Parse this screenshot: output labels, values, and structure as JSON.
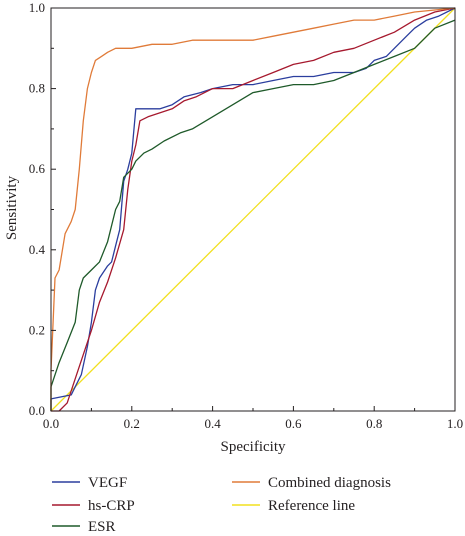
{
  "chart_data": {
    "type": "line",
    "title": "",
    "xlabel": "Specificity",
    "ylabel": "Sensitivity",
    "xlim": [
      0,
      1
    ],
    "ylim": [
      0,
      1
    ],
    "x_ticks": [
      "0.0",
      "0.2",
      "0.4",
      "0.6",
      "0.8",
      "1.0"
    ],
    "y_ticks": [
      "0.0",
      "0.2",
      "0.4",
      "0.6",
      "0.8",
      "1.0"
    ],
    "grid": false,
    "legend": "bottom",
    "series": [
      {
        "name": "VEGF",
        "color": "#2b3e9e",
        "points": [
          [
            0,
            0
          ],
          [
            0,
            0.03
          ],
          [
            0.05,
            0.04
          ],
          [
            0.06,
            0.06
          ],
          [
            0.075,
            0.09
          ],
          [
            0.09,
            0.16
          ],
          [
            0.1,
            0.22
          ],
          [
            0.11,
            0.3
          ],
          [
            0.12,
            0.33
          ],
          [
            0.14,
            0.36
          ],
          [
            0.15,
            0.37
          ],
          [
            0.16,
            0.41
          ],
          [
            0.17,
            0.45
          ],
          [
            0.18,
            0.57
          ],
          [
            0.19,
            0.6
          ],
          [
            0.2,
            0.64
          ],
          [
            0.21,
            0.75
          ],
          [
            0.24,
            0.75
          ],
          [
            0.27,
            0.75
          ],
          [
            0.3,
            0.76
          ],
          [
            0.33,
            0.78
          ],
          [
            0.37,
            0.79
          ],
          [
            0.4,
            0.8
          ],
          [
            0.45,
            0.81
          ],
          [
            0.5,
            0.81
          ],
          [
            0.55,
            0.82
          ],
          [
            0.6,
            0.83
          ],
          [
            0.65,
            0.83
          ],
          [
            0.7,
            0.84
          ],
          [
            0.75,
            0.84
          ],
          [
            0.78,
            0.85
          ],
          [
            0.8,
            0.87
          ],
          [
            0.83,
            0.88
          ],
          [
            0.85,
            0.9
          ],
          [
            0.88,
            0.93
          ],
          [
            0.9,
            0.95
          ],
          [
            0.93,
            0.97
          ],
          [
            0.96,
            0.98
          ],
          [
            1,
            1
          ]
        ]
      },
      {
        "name": "hs-CRP",
        "color": "#a6192e",
        "points": [
          [
            0,
            0
          ],
          [
            0.02,
            0
          ],
          [
            0.04,
            0.02
          ],
          [
            0.06,
            0.08
          ],
          [
            0.08,
            0.14
          ],
          [
            0.1,
            0.2
          ],
          [
            0.12,
            0.27
          ],
          [
            0.14,
            0.32
          ],
          [
            0.16,
            0.38
          ],
          [
            0.18,
            0.45
          ],
          [
            0.19,
            0.55
          ],
          [
            0.2,
            0.62
          ],
          [
            0.21,
            0.66
          ],
          [
            0.22,
            0.72
          ],
          [
            0.24,
            0.73
          ],
          [
            0.27,
            0.74
          ],
          [
            0.3,
            0.75
          ],
          [
            0.33,
            0.77
          ],
          [
            0.36,
            0.78
          ],
          [
            0.4,
            0.8
          ],
          [
            0.45,
            0.8
          ],
          [
            0.5,
            0.82
          ],
          [
            0.55,
            0.84
          ],
          [
            0.6,
            0.86
          ],
          [
            0.65,
            0.87
          ],
          [
            0.7,
            0.89
          ],
          [
            0.75,
            0.9
          ],
          [
            0.8,
            0.92
          ],
          [
            0.85,
            0.94
          ],
          [
            0.9,
            0.97
          ],
          [
            0.95,
            0.99
          ],
          [
            1,
            1
          ]
        ]
      },
      {
        "name": "ESR",
        "color": "#1f5a2a",
        "points": [
          [
            0,
            0
          ],
          [
            0,
            0.06
          ],
          [
            0.02,
            0.12
          ],
          [
            0.04,
            0.17
          ],
          [
            0.06,
            0.22
          ],
          [
            0.07,
            0.3
          ],
          [
            0.08,
            0.33
          ],
          [
            0.1,
            0.35
          ],
          [
            0.12,
            0.37
          ],
          [
            0.14,
            0.42
          ],
          [
            0.16,
            0.5
          ],
          [
            0.17,
            0.52
          ],
          [
            0.18,
            0.58
          ],
          [
            0.2,
            0.6
          ],
          [
            0.21,
            0.62
          ],
          [
            0.23,
            0.64
          ],
          [
            0.25,
            0.65
          ],
          [
            0.28,
            0.67
          ],
          [
            0.32,
            0.69
          ],
          [
            0.35,
            0.7
          ],
          [
            0.4,
            0.73
          ],
          [
            0.45,
            0.76
          ],
          [
            0.5,
            0.79
          ],
          [
            0.55,
            0.8
          ],
          [
            0.6,
            0.81
          ],
          [
            0.65,
            0.81
          ],
          [
            0.7,
            0.82
          ],
          [
            0.75,
            0.84
          ],
          [
            0.8,
            0.86
          ],
          [
            0.85,
            0.88
          ],
          [
            0.9,
            0.9
          ],
          [
            0.95,
            0.95
          ],
          [
            1,
            0.97
          ]
        ]
      },
      {
        "name": "Combined diagnosis",
        "color": "#e07b39",
        "points": [
          [
            0,
            0
          ],
          [
            0,
            0.1
          ],
          [
            0.01,
            0.33
          ],
          [
            0.02,
            0.35
          ],
          [
            0.035,
            0.44
          ],
          [
            0.05,
            0.47
          ],
          [
            0.06,
            0.5
          ],
          [
            0.07,
            0.6
          ],
          [
            0.08,
            0.72
          ],
          [
            0.09,
            0.8
          ],
          [
            0.1,
            0.84
          ],
          [
            0.11,
            0.87
          ],
          [
            0.125,
            0.88
          ],
          [
            0.14,
            0.89
          ],
          [
            0.16,
            0.9
          ],
          [
            0.2,
            0.9
          ],
          [
            0.25,
            0.91
          ],
          [
            0.3,
            0.91
          ],
          [
            0.35,
            0.92
          ],
          [
            0.4,
            0.92
          ],
          [
            0.5,
            0.92
          ],
          [
            0.55,
            0.93
          ],
          [
            0.6,
            0.94
          ],
          [
            0.65,
            0.95
          ],
          [
            0.7,
            0.96
          ],
          [
            0.75,
            0.97
          ],
          [
            0.8,
            0.97
          ],
          [
            0.85,
            0.98
          ],
          [
            0.9,
            0.99
          ],
          [
            1,
            1
          ]
        ]
      },
      {
        "name": "Reference line",
        "color": "#f2e01f",
        "points": [
          [
            0,
            0
          ],
          [
            1,
            1
          ]
        ]
      }
    ]
  }
}
